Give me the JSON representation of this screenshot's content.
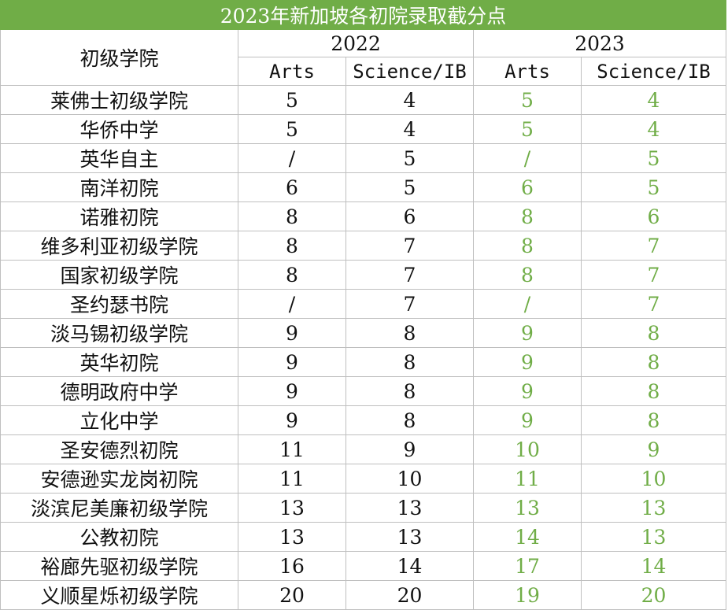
{
  "title": "2023年新加坡各初院录取截分点",
  "header": {
    "school_col": "初级学院",
    "year_2022": "2022",
    "year_2023": "2023",
    "arts": "Arts",
    "science": "Science/IB"
  },
  "rows": [
    {
      "school": "莱佛士初级学院",
      "a22": "5",
      "s22": "4",
      "a23": "5",
      "s23": "4"
    },
    {
      "school": "华侨中学",
      "a22": "5",
      "s22": "4",
      "a23": "5",
      "s23": "4"
    },
    {
      "school": "英华自主",
      "a22": "/",
      "s22": "5",
      "a23": "/",
      "s23": "5"
    },
    {
      "school": "南洋初院",
      "a22": "6",
      "s22": "5",
      "a23": "6",
      "s23": "5"
    },
    {
      "school": "诺雅初院",
      "a22": "8",
      "s22": "6",
      "a23": "8",
      "s23": "6"
    },
    {
      "school": "维多利亚初级学院",
      "a22": "8",
      "s22": "7",
      "a23": "8",
      "s23": "7"
    },
    {
      "school": "国家初级学院",
      "a22": "8",
      "s22": "7",
      "a23": "8",
      "s23": "7"
    },
    {
      "school": "圣约瑟书院",
      "a22": "/",
      "s22": "7",
      "a23": "/",
      "s23": "7"
    },
    {
      "school": "淡马锡初级学院",
      "a22": "9",
      "s22": "8",
      "a23": "9",
      "s23": "8"
    },
    {
      "school": "英华初院",
      "a22": "9",
      "s22": "8",
      "a23": "9",
      "s23": "8"
    },
    {
      "school": "德明政府中学",
      "a22": "9",
      "s22": "8",
      "a23": "9",
      "s23": "8"
    },
    {
      "school": "立化中学",
      "a22": "9",
      "s22": "8",
      "a23": "9",
      "s23": "8"
    },
    {
      "school": "圣安德烈初院",
      "a22": "11",
      "s22": "9",
      "a23": "10",
      "s23": "9"
    },
    {
      "school": "安德逊实龙岗初院",
      "a22": "11",
      "s22": "10",
      "a23": "11",
      "s23": "10"
    },
    {
      "school": "淡滨尼美廉初级学院",
      "a22": "13",
      "s22": "13",
      "a23": "13",
      "s23": "13"
    },
    {
      "school": "公教初院",
      "a22": "13",
      "s22": "13",
      "a23": "14",
      "s23": "13"
    },
    {
      "school": "裕廊先驱初级学院",
      "a22": "16",
      "s22": "14",
      "a23": "17",
      "s23": "14"
    },
    {
      "school": "义顺星烁初级学院",
      "a22": "20",
      "s22": "20",
      "a23": "19",
      "s23": "20"
    }
  ],
  "colors": {
    "header_bg": "#70ad47",
    "highlight_2023": "#70ad47",
    "grid": "#bfbfbf"
  }
}
